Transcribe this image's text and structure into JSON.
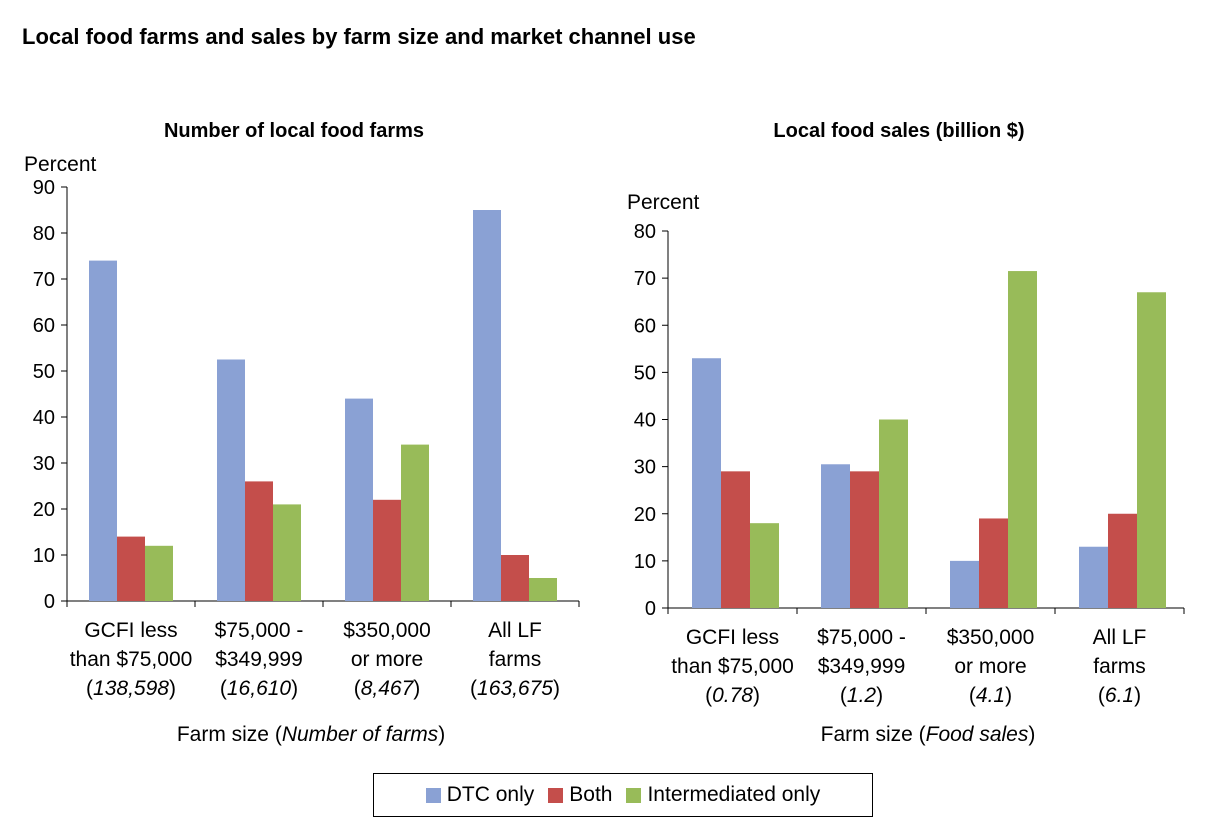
{
  "title": "Local food farms and sales by farm size and market channel use",
  "colors": {
    "DTC only": "#8aa1d4",
    "Both": "#c44e4b",
    "Intermediated only": "#98bb59"
  },
  "legend": [
    "DTC only",
    "Both",
    "Intermediated only"
  ],
  "chart_data": [
    {
      "type": "bar",
      "title": "Number of local food farms",
      "ylabel": "Percent",
      "xlabel_prefix": "Farm size (",
      "xlabel_italic": "Number of farms",
      "xlabel_suffix": ")",
      "ylim": [
        0,
        90
      ],
      "yticks": [
        0,
        10,
        20,
        30,
        40,
        50,
        60,
        70,
        80,
        90
      ],
      "categories": [
        {
          "lines": [
            "GCFI less",
            "than $75,000"
          ],
          "note": "138,598"
        },
        {
          "lines": [
            "$75,000 -",
            "$349,999"
          ],
          "note": "16,610"
        },
        {
          "lines": [
            "$350,000",
            "or more"
          ],
          "note": "8,467"
        },
        {
          "lines": [
            "All LF",
            "farms"
          ],
          "note": "163,675"
        }
      ],
      "series": [
        {
          "name": "DTC only",
          "values": [
            74,
            52.5,
            44,
            85
          ]
        },
        {
          "name": "Both",
          "values": [
            14,
            26,
            22,
            10
          ]
        },
        {
          "name": "Intermediated only",
          "values": [
            12,
            21,
            34,
            5
          ]
        }
      ]
    },
    {
      "type": "bar",
      "title": "Local food sales (billion $)",
      "ylabel": "Percent",
      "xlabel_prefix": "Farm size (",
      "xlabel_italic": "Food sales",
      "xlabel_suffix": ")",
      "ylim": [
        0,
        80
      ],
      "yticks": [
        0,
        10,
        20,
        30,
        40,
        50,
        60,
        70,
        80
      ],
      "categories": [
        {
          "lines": [
            "GCFI less",
            "than $75,000"
          ],
          "note": "0.78"
        },
        {
          "lines": [
            "$75,000 -",
            "$349,999"
          ],
          "note": "1.2"
        },
        {
          "lines": [
            "$350,000",
            "or more"
          ],
          "note": "4.1"
        },
        {
          "lines": [
            "All LF",
            "farms"
          ],
          "note": "6.1"
        }
      ],
      "series": [
        {
          "name": "DTC only",
          "values": [
            53,
            30.5,
            10,
            13
          ]
        },
        {
          "name": "Both",
          "values": [
            29,
            29,
            19,
            20
          ]
        },
        {
          "name": "Intermediated only",
          "values": [
            18,
            40,
            71.5,
            67
          ]
        }
      ]
    }
  ]
}
